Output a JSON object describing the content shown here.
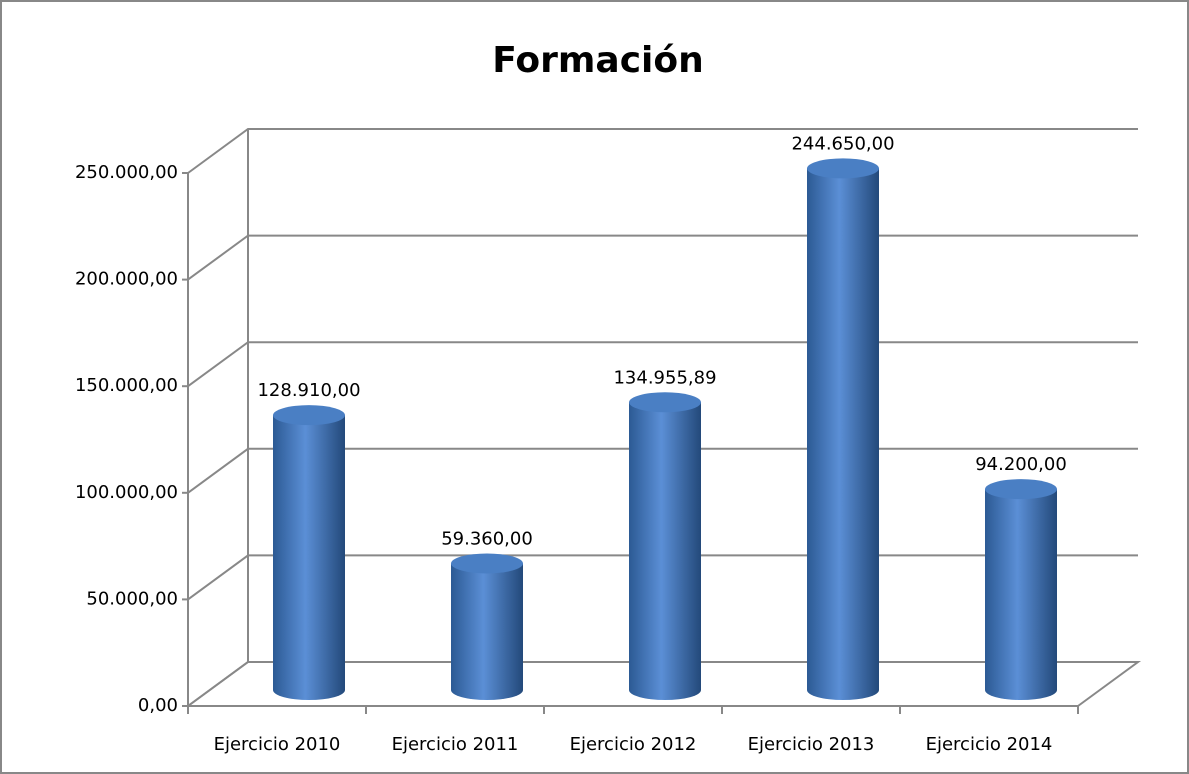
{
  "chart_data": {
    "type": "bar3d",
    "title": "Formación",
    "categories": [
      "Ejercicio 2010",
      "Ejercicio 2011",
      "Ejercicio 2012",
      "Ejercicio 2013",
      "Ejercicio 2014"
    ],
    "values": [
      128910,
      59360,
      134955.89,
      244650,
      94200
    ],
    "value_labels": [
      "128.910,00",
      "59.360,00",
      "134.955,89",
      "244.650,00",
      "94.200,00"
    ],
    "color": "#4f81bd",
    "ylim": [
      0,
      250000
    ],
    "yticks": [
      {
        "value": 0,
        "label": "0,00"
      },
      {
        "value": 50000,
        "label": "50.000,00"
      },
      {
        "value": 100000,
        "label": "100.000,00"
      },
      {
        "value": 150000,
        "label": "150.000,00"
      },
      {
        "value": 200000,
        "label": "200.000,00"
      },
      {
        "value": 250000,
        "label": "250.000,00"
      }
    ],
    "grid": true
  }
}
